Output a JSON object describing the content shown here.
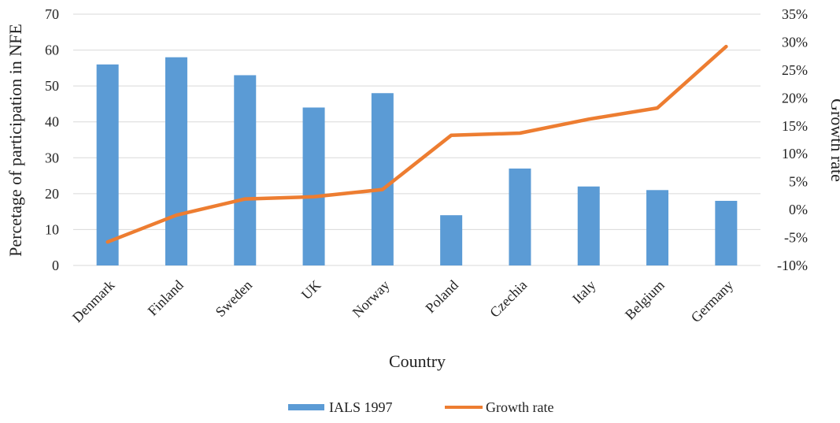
{
  "chart_data": {
    "type": "bar",
    "categories": [
      "Denmark",
      "Finland",
      "Sweden",
      "UK",
      "Norway",
      "Poland",
      "Czechia",
      "Italy",
      "Belgium",
      "Germany"
    ],
    "series": [
      {
        "name": "IALS 1997",
        "type": "bar",
        "axis": "left",
        "color": "#5b9bd5",
        "values": [
          56,
          58,
          53,
          44,
          48,
          14,
          27,
          22,
          21,
          18
        ]
      },
      {
        "name": "Growth rate",
        "type": "line",
        "axis": "right",
        "color": "#ed7d31",
        "values": [
          -5.8,
          -1.0,
          1.9,
          2.3,
          3.6,
          13.3,
          13.7,
          16.2,
          18.2,
          29.2
        ]
      }
    ],
    "xlabel": "Country",
    "ylabel": "Percetage of participation in NFE",
    "y2label": "Growth rate",
    "ylim": [
      0,
      70
    ],
    "y2lim": [
      -10,
      35
    ],
    "yticks": [
      "0",
      "10",
      "20",
      "30",
      "40",
      "50",
      "60",
      "70"
    ],
    "y2ticks": [
      "-10%",
      "-5%",
      "0%",
      "5%",
      "10%",
      "15%",
      "20%",
      "25%",
      "30%",
      "35%"
    ],
    "grid": true,
    "legend_position": "bottom"
  }
}
